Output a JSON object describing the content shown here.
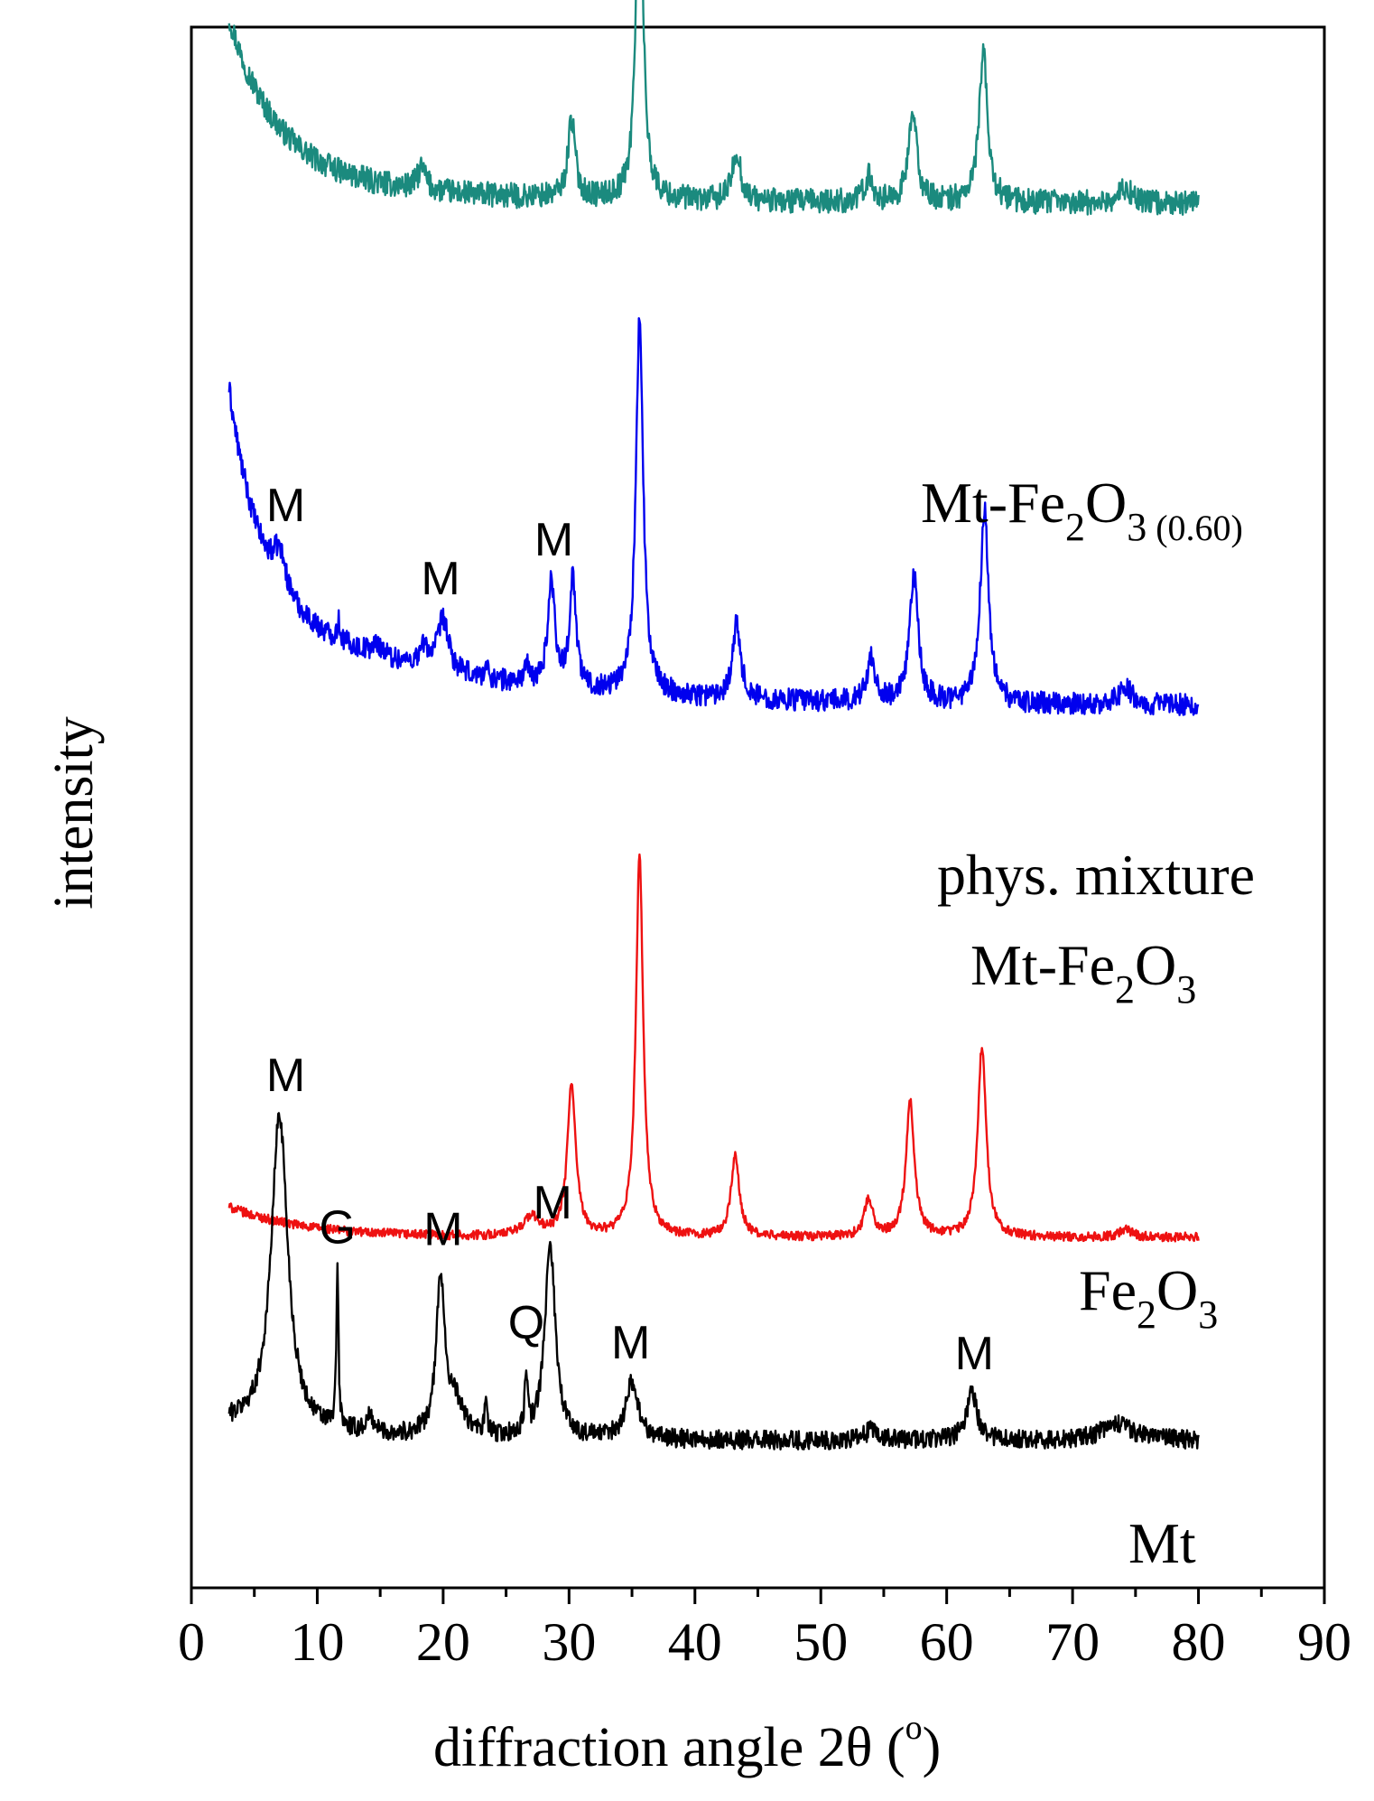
{
  "chart_data": {
    "type": "line",
    "title": "",
    "xlabel": "diffraction angle 2θ (°)",
    "xlabel_parts": {
      "main": "diffraction angle 2θ (",
      "degree": "o",
      "close": ")"
    },
    "ylabel": "intensity",
    "xlim": [
      0,
      90
    ],
    "x_ticks": [
      0,
      10,
      20,
      30,
      40,
      50,
      60,
      70,
      80,
      90
    ],
    "x_tick_labels": [
      "0",
      "10",
      "20",
      "30",
      "40",
      "50",
      "60",
      "70",
      "80",
      "90"
    ],
    "x_range_measured": [
      3,
      80
    ],
    "y_ticks_shown": false,
    "grid": false,
    "series": [
      {
        "id": "mt_fe2o3_060",
        "name": "Mt-Fe2O3 (0.60)",
        "label_parts": {
          "main": "Mt-Fe",
          "sub1": "2",
          "mid": "O",
          "sub2": "3",
          "extra": "(0.60)"
        },
        "color": "#1b8a7e",
        "baseline": 0.6,
        "decay_amp": 0.4,
        "decay_len": 3.5,
        "decay_amp2": 0.12,
        "decay_len2": 12,
        "noise": 0.035,
        "peaks": [
          {
            "x": 18.3,
            "h": 0.06,
            "w": 0.4
          },
          {
            "x": 30.2,
            "h": 0.22,
            "w": 0.35
          },
          {
            "x": 35.6,
            "h": 1.0,
            "w": 0.33
          },
          {
            "x": 43.3,
            "h": 0.14,
            "w": 0.4
          },
          {
            "x": 53.8,
            "h": 0.07,
            "w": 0.4
          },
          {
            "x": 57.3,
            "h": 0.25,
            "w": 0.4
          },
          {
            "x": 62.9,
            "h": 0.42,
            "w": 0.4
          },
          {
            "x": 74.2,
            "h": 0.04,
            "w": 0.6
          }
        ]
      },
      {
        "id": "phys_mixture",
        "name": "phys. mixture Mt-Fe2O3",
        "label_parts": {
          "line1": "phys. mixture",
          "main": "Mt-Fe",
          "sub1": "2",
          "mid": "O",
          "sub2": "3"
        },
        "color": "#0000ee",
        "baseline": 0.3,
        "decay_amp": 0.55,
        "decay_len": 2.4,
        "decay_amp2": 0.3,
        "decay_len2": 14,
        "noise": 0.03,
        "peaks": [
          {
            "x": 7.0,
            "h": 0.1,
            "w": 0.6
          },
          {
            "x": 11.7,
            "h": 0.05,
            "w": 0.15
          },
          {
            "x": 14.8,
            "h": 0.03,
            "w": 0.6
          },
          {
            "x": 18.5,
            "h": 0.05,
            "w": 0.5
          },
          {
            "x": 20.0,
            "h": 0.14,
            "w": 0.5
          },
          {
            "x": 23.4,
            "h": 0.03,
            "w": 0.2
          },
          {
            "x": 26.6,
            "h": 0.05,
            "w": 0.2
          },
          {
            "x": 28.6,
            "h": 0.28,
            "w": 0.35
          },
          {
            "x": 30.3,
            "h": 0.3,
            "w": 0.3
          },
          {
            "x": 35.6,
            "h": 1.0,
            "w": 0.35
          },
          {
            "x": 43.3,
            "h": 0.2,
            "w": 0.4
          },
          {
            "x": 54.0,
            "h": 0.12,
            "w": 0.4
          },
          {
            "x": 57.4,
            "h": 0.34,
            "w": 0.4
          },
          {
            "x": 63.0,
            "h": 0.52,
            "w": 0.4
          },
          {
            "x": 74.2,
            "h": 0.05,
            "w": 0.6
          }
        ]
      },
      {
        "id": "fe2o3",
        "name": "Fe2O3",
        "label_parts": {
          "main": "Fe",
          "sub1": "2",
          "mid": "O",
          "sub2": "3"
        },
        "color": "#ee1111",
        "baseline": 0.0,
        "decay_amp": 0.08,
        "decay_len": 6,
        "decay_amp2": 0.0,
        "decay_len2": 10,
        "noise": 0.012,
        "peaks": [
          {
            "x": 27.0,
            "h": 0.05,
            "w": 0.8
          },
          {
            "x": 30.2,
            "h": 0.4,
            "w": 0.4
          },
          {
            "x": 35.6,
            "h": 1.0,
            "w": 0.35
          },
          {
            "x": 43.2,
            "h": 0.21,
            "w": 0.4
          },
          {
            "x": 53.8,
            "h": 0.1,
            "w": 0.4
          },
          {
            "x": 57.1,
            "h": 0.36,
            "w": 0.4
          },
          {
            "x": 62.8,
            "h": 0.5,
            "w": 0.4
          },
          {
            "x": 74.2,
            "h": 0.02,
            "w": 0.6
          }
        ]
      },
      {
        "id": "mt",
        "name": "Mt",
        "label_parts": {
          "main": "Mt"
        },
        "color": "#000000",
        "baseline": 0.2,
        "decay_amp": 0.05,
        "decay_len": 8,
        "decay_amp2": 0.0,
        "decay_len2": 10,
        "noise": 0.03,
        "peaks": [
          {
            "x": 7.0,
            "h": 1.0,
            "w": 0.8
          },
          {
            "x": 11.6,
            "h": 0.5,
            "w": 0.1
          },
          {
            "x": 14.2,
            "h": 0.05,
            "w": 0.4
          },
          {
            "x": 19.8,
            "h": 0.5,
            "w": 0.4
          },
          {
            "x": 21.0,
            "h": 0.1,
            "w": 0.8
          },
          {
            "x": 23.4,
            "h": 0.12,
            "w": 0.1
          },
          {
            "x": 26.6,
            "h": 0.2,
            "w": 0.12
          },
          {
            "x": 28.5,
            "h": 0.62,
            "w": 0.5
          },
          {
            "x": 35.0,
            "h": 0.18,
            "w": 0.6
          },
          {
            "x": 54.0,
            "h": 0.03,
            "w": 0.6
          },
          {
            "x": 62.0,
            "h": 0.15,
            "w": 0.5
          },
          {
            "x": 73.5,
            "h": 0.05,
            "w": 1.5
          }
        ]
      }
    ],
    "annotations": [
      {
        "series": "phys_mixture",
        "text": "M",
        "x": 7.5
      },
      {
        "series": "phys_mixture",
        "text": "M",
        "x": 19.8
      },
      {
        "series": "phys_mixture",
        "text": "M",
        "x": 28.8
      },
      {
        "series": "mt",
        "text": "M",
        "x": 7.5
      },
      {
        "series": "mt",
        "text": "G",
        "x": 11.6
      },
      {
        "series": "mt",
        "text": "M",
        "x": 20.0
      },
      {
        "series": "mt",
        "text": "Q",
        "x": 26.6
      },
      {
        "series": "mt",
        "text": "M",
        "x": 28.7
      },
      {
        "series": "mt",
        "text": "M",
        "x": 34.9
      },
      {
        "series": "mt",
        "text": "M",
        "x": 62.2
      }
    ]
  }
}
